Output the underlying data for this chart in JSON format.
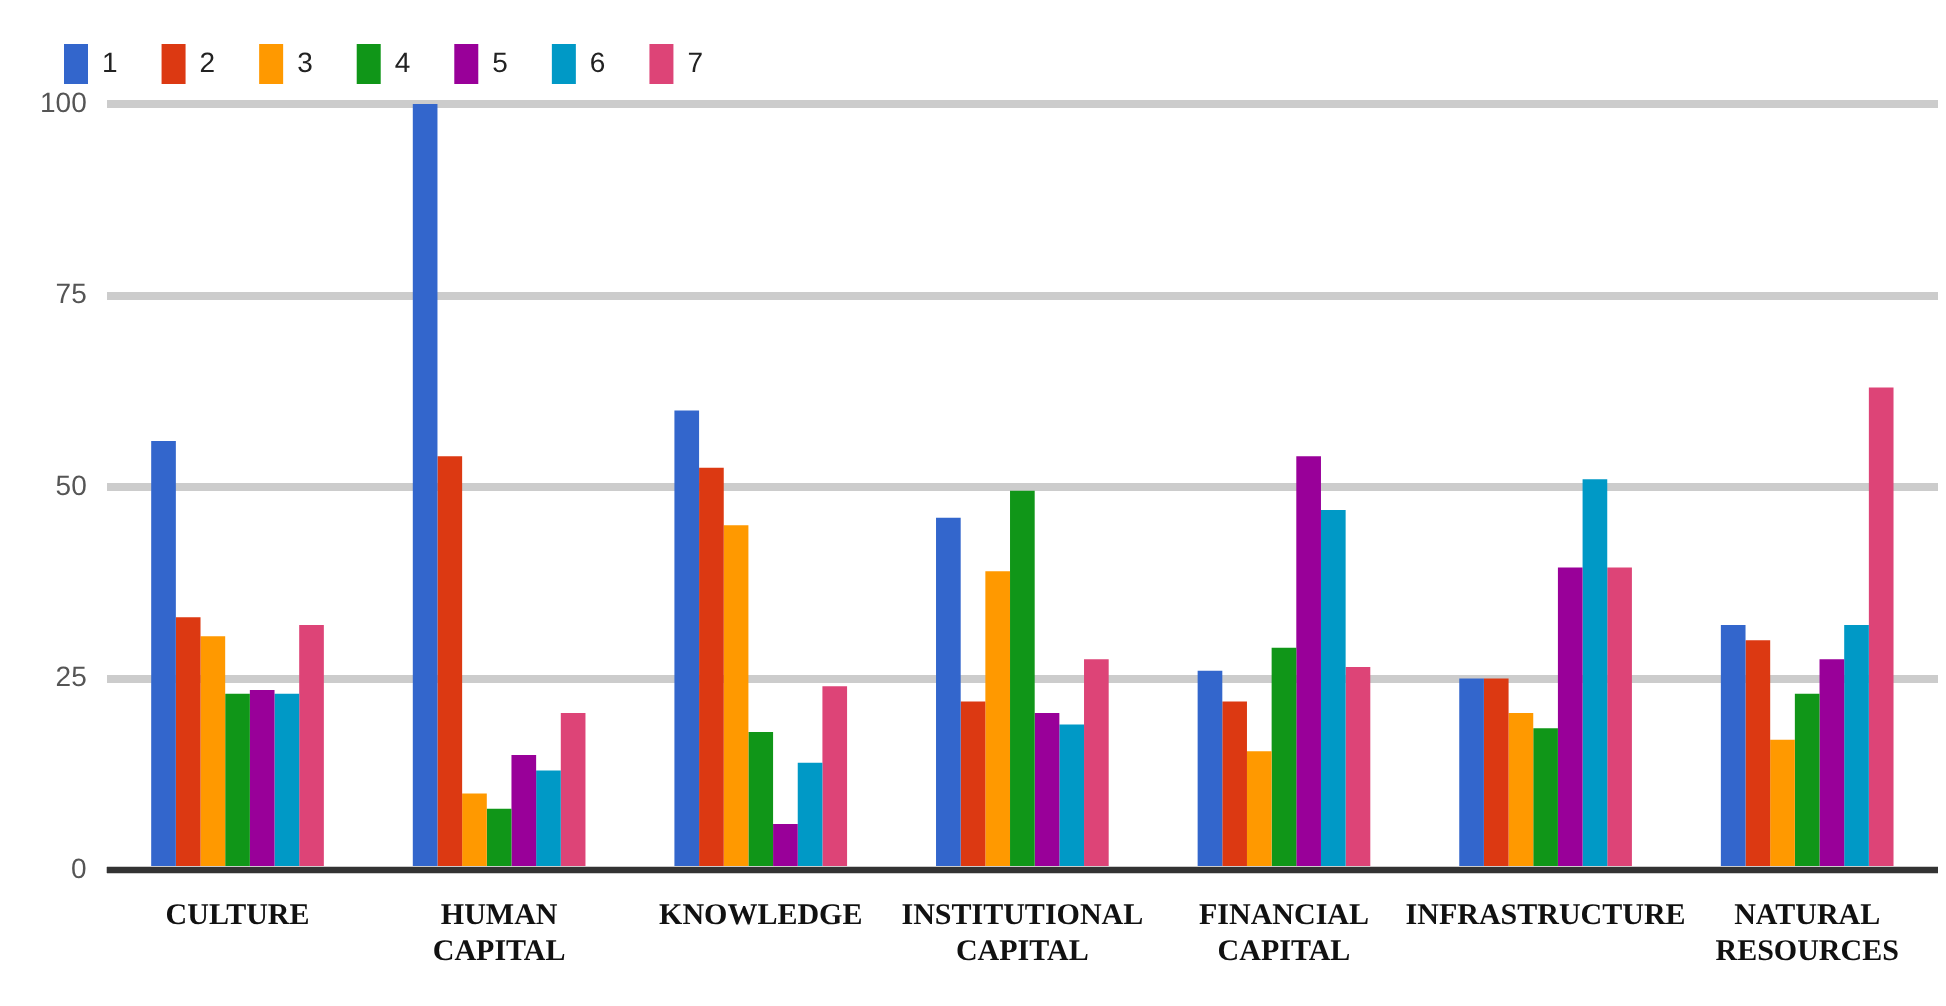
{
  "chart_data": {
    "type": "bar",
    "categories": [
      "CULTURE",
      "HUMAN CAPITAL",
      "KNOWLEDGE",
      "INSTITUTIONAL CAPITAL",
      "FINANCIAL CAPITAL",
      "INFRASTRUCTURE",
      "NATURAL RESOURCES"
    ],
    "series": [
      {
        "name": "1",
        "color": "#3366cc",
        "values": [
          56,
          100,
          60,
          46,
          26,
          25,
          32
        ]
      },
      {
        "name": "2",
        "color": "#dc3912",
        "values": [
          33,
          54,
          52.5,
          22,
          22,
          25,
          30
        ]
      },
      {
        "name": "3",
        "color": "#ff9900",
        "values": [
          30.5,
          10,
          45,
          39,
          15.5,
          20.5,
          17
        ]
      },
      {
        "name": "4",
        "color": "#109618",
        "values": [
          23,
          8,
          18,
          49.5,
          29,
          18.5,
          23
        ]
      },
      {
        "name": "5",
        "color": "#990099",
        "values": [
          23.5,
          15,
          6,
          20.5,
          54,
          39.5,
          27.5
        ]
      },
      {
        "name": "6",
        "color": "#0099c6",
        "values": [
          23,
          13,
          14,
          19,
          47,
          51,
          32
        ]
      },
      {
        "name": "7",
        "color": "#dd4477",
        "values": [
          32,
          20.5,
          24,
          27.5,
          26.5,
          39.5,
          63
        ]
      }
    ],
    "ylim": [
      0,
      100
    ],
    "yticks": [
      0,
      25,
      50,
      75,
      100
    ],
    "grid": "y",
    "legend": "top left"
  }
}
